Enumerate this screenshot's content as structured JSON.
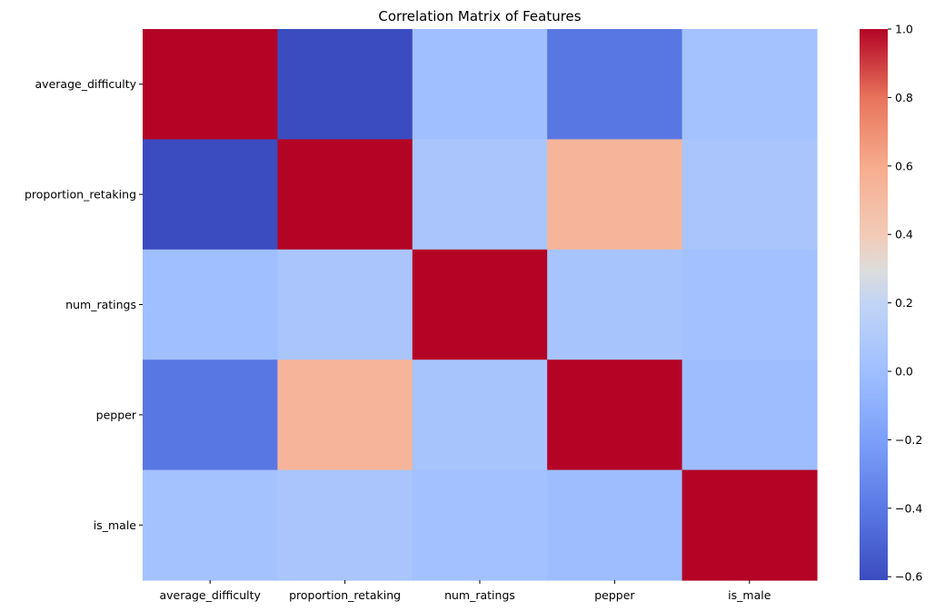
{
  "chart_data": {
    "type": "heatmap",
    "title": "Correlation Matrix of Features",
    "row_labels": [
      "average_difficulty",
      "proportion_retaking",
      "num_ratings",
      "pepper",
      "is_male"
    ],
    "col_labels": [
      "average_difficulty",
      "proportion_retaking",
      "num_ratings",
      "pepper",
      "is_male"
    ],
    "values": [
      [
        1.0,
        -0.61,
        0.0,
        -0.41,
        0.03
      ],
      [
        -0.61,
        1.0,
        0.06,
        0.54,
        0.06
      ],
      [
        0.0,
        0.06,
        1.0,
        0.05,
        0.02
      ],
      [
        -0.41,
        0.54,
        0.05,
        1.0,
        -0.01
      ],
      [
        0.03,
        0.06,
        0.02,
        -0.01,
        1.0
      ]
    ],
    "colormap": "coolwarm",
    "vmin": -0.61,
    "vmax": 1.0,
    "colorbar_ticks": [
      1.0,
      0.8,
      0.6,
      0.4,
      0.2,
      0.0,
      -0.2,
      -0.4,
      -0.6
    ],
    "colorbar_tick_labels": [
      "1.0",
      "0.8",
      "0.6",
      "0.4",
      "0.2",
      "0.0",
      "−0.2",
      "−0.4",
      "−0.6"
    ]
  }
}
